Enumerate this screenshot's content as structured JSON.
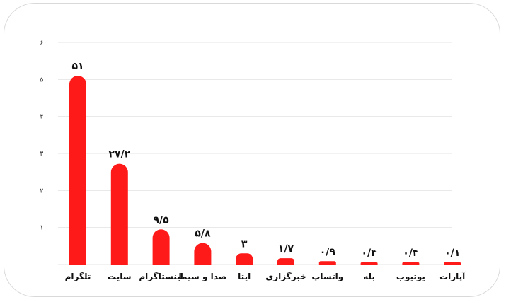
{
  "chart_data": {
    "type": "bar",
    "categories": [
      "تلگرام",
      "سایت",
      "اینستاگرام",
      "صدا و سیما",
      "ایتا",
      "خبرگزاری",
      "واتساپ",
      "بله",
      "یوتیوب",
      "آپارات"
    ],
    "values": [
      51,
      27.2,
      9.5,
      5.8,
      3,
      1.7,
      0.9,
      0.4,
      0.4,
      0.1
    ],
    "value_labels": [
      "۵۱",
      "۲۷/۲",
      "۹/۵",
      "۵/۸",
      "۳",
      "۱/۷",
      "۰/۹",
      "۰/۴",
      "۰/۴",
      "۰/۱"
    ],
    "y_ticks": [
      0,
      10,
      20,
      30,
      40,
      50,
      60
    ],
    "y_tick_labels": [
      "۰",
      "۱۰",
      "۲۰",
      "۳۰",
      "۴۰",
      "۵۰",
      "۶۰"
    ],
    "ylim": [
      0,
      60
    ],
    "grid": true,
    "legend": false,
    "title": "",
    "xlabel": "",
    "ylabel": "",
    "bar_color": "#ff1a1a",
    "grid_color": "#e6e6e6"
  }
}
